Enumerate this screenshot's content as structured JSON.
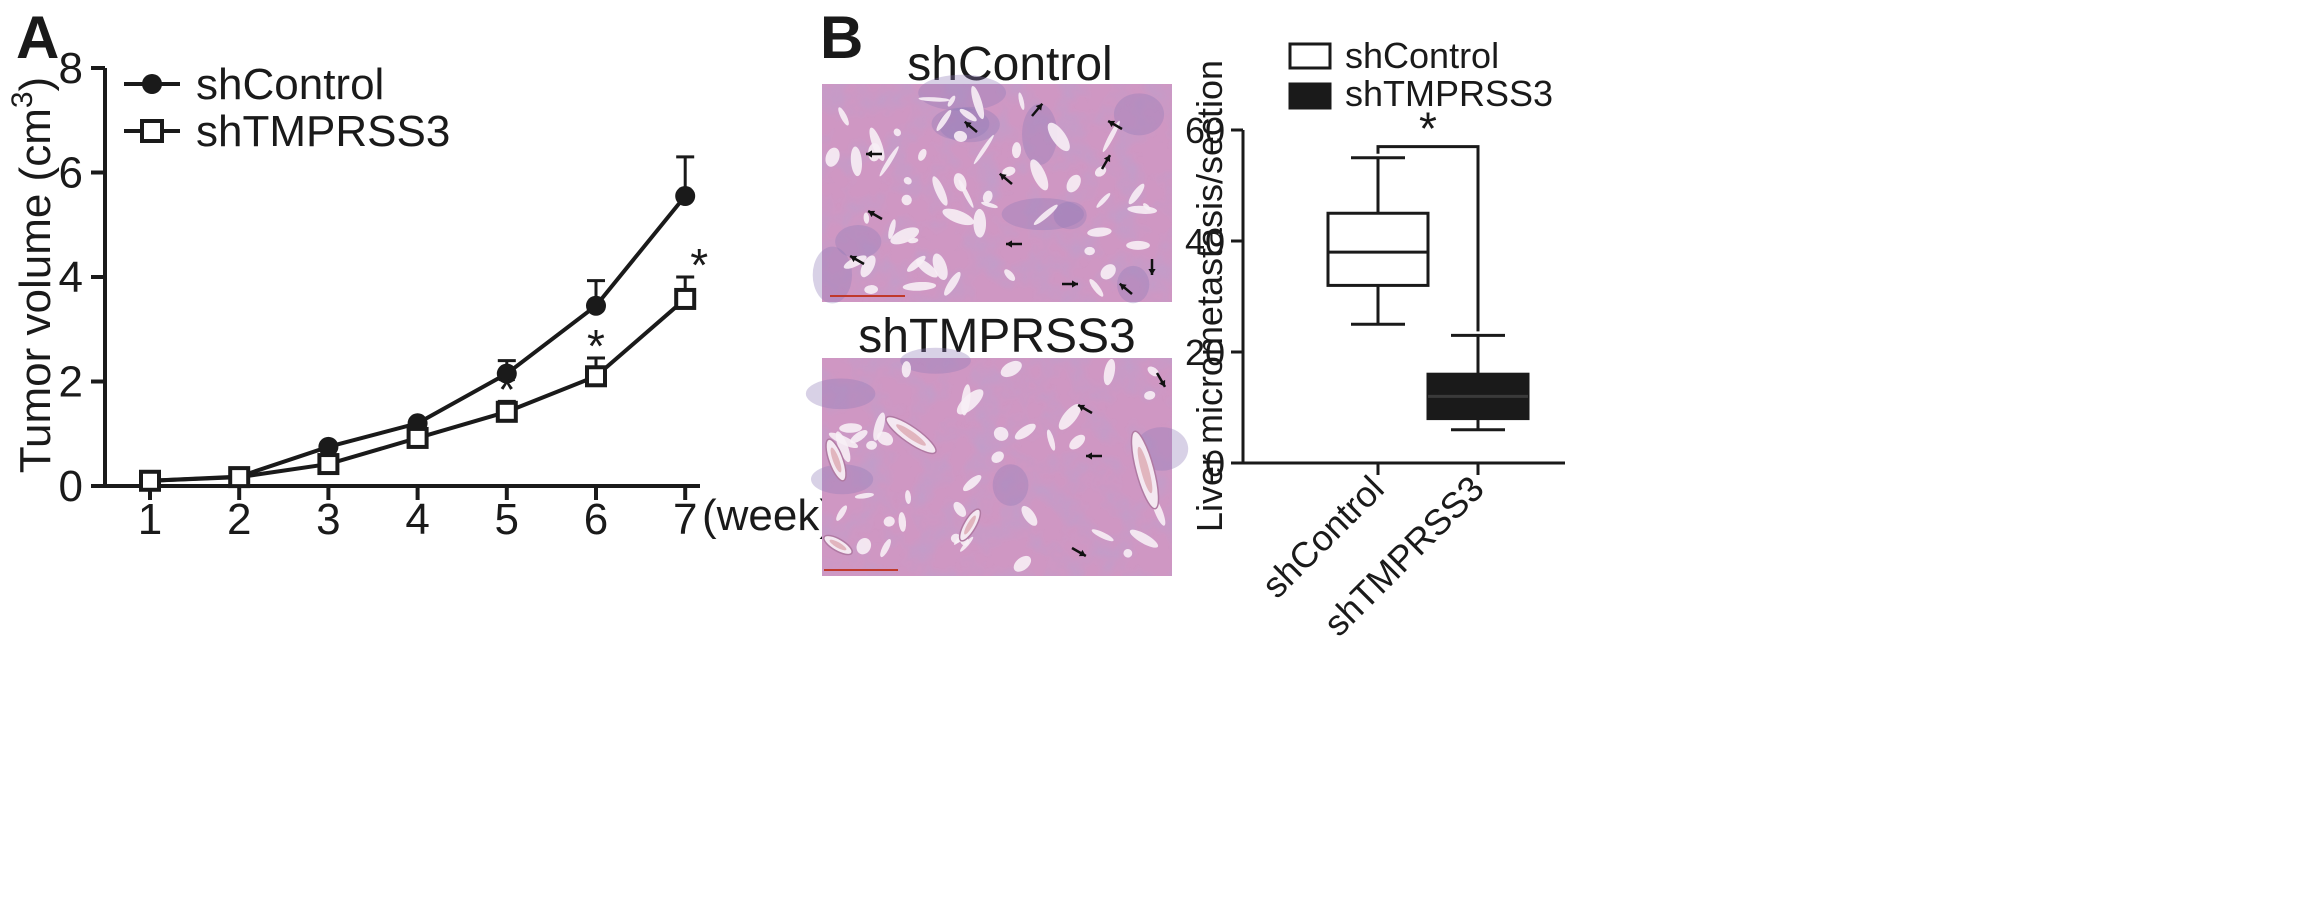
{
  "panels": {
    "a_letter": "A",
    "b_letter": "B"
  },
  "chart_data": [
    {
      "type": "line",
      "title": "",
      "xlabel": "(week)",
      "ylabel": "Tumor volume (cm",
      "ylabel_sup": "3",
      "ylabel_close": ")",
      "x": [
        1,
        2,
        3,
        4,
        5,
        6,
        7
      ],
      "x_ticks": [
        "1",
        "2",
        "3",
        "4",
        "5",
        "6",
        "7"
      ],
      "ylim": [
        0,
        8
      ],
      "y_ticks": [
        "0",
        "2",
        "4",
        "6",
        "8"
      ],
      "legend_position": "top-left",
      "series": [
        {
          "name": "shControl",
          "marker": "filled-circle",
          "values": [
            0.1,
            0.18,
            0.75,
            1.2,
            2.15,
            3.45,
            5.55
          ],
          "errors": [
            0,
            0,
            0,
            0,
            0.25,
            0.48,
            0.75
          ]
        },
        {
          "name": "shTMPRSS3",
          "marker": "open-square",
          "values": [
            0.1,
            0.17,
            0.42,
            0.92,
            1.42,
            2.1,
            3.58
          ],
          "errors": [
            0,
            0,
            0,
            0,
            0.2,
            0.35,
            0.42
          ]
        }
      ],
      "annotations": [
        {
          "x": 5,
          "text": "*"
        },
        {
          "x": 6,
          "text": "*"
        },
        {
          "x": 7,
          "text": "*"
        }
      ],
      "grid": false,
      "colors": {
        "line": "#1a1a1a"
      }
    },
    {
      "type": "box",
      "title": "",
      "ylabel": "Liver micrometastasis/section",
      "categories": [
        "shControl",
        "shTMPRSS3"
      ],
      "ylim": [
        0,
        60
      ],
      "y_ticks": [
        "0",
        "20",
        "40",
        "60"
      ],
      "legend_position": "top",
      "series": [
        {
          "name": "shControl",
          "fill": "#ffffff",
          "min": 25,
          "q1": 32,
          "median": 38,
          "q3": 45,
          "max": 55
        },
        {
          "name": "shTMPRSS3",
          "fill": "#1a1a1a",
          "min": 6,
          "q1": 8,
          "median": 12,
          "q3": 16,
          "max": 23
        }
      ],
      "significance": {
        "text": "*",
        "y": 57
      },
      "grid": false
    }
  ],
  "micrographs": {
    "top_title": "shControl",
    "bottom_title": "shTMPRSS3",
    "colors": {
      "tissue": "#c58ab8",
      "tissue_light": "#d7a6cc",
      "stain": "#8e7bb8",
      "scalebar": "#c0392b"
    }
  }
}
